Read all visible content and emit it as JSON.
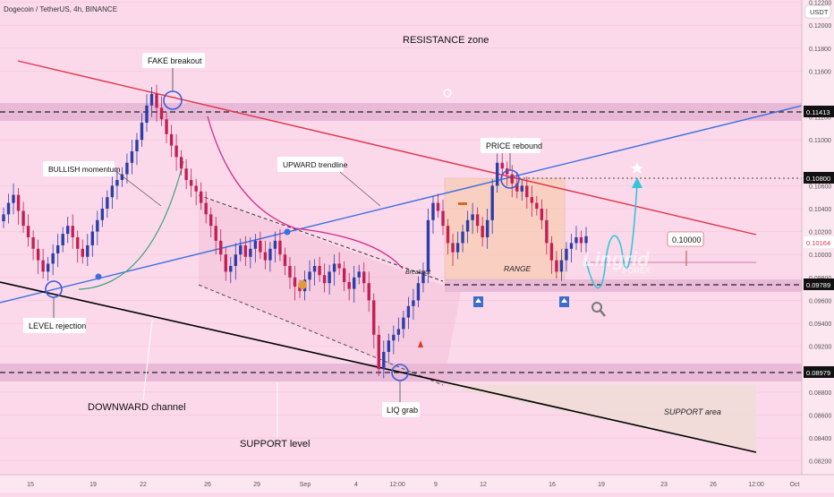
{
  "header": {
    "symbol": "Dogecoin / TetherUS, 4h, BINANCE"
  },
  "price_axis": {
    "currency": "USDT"
  },
  "time_axis": {
    "labels": [
      "15",
      "19",
      "22",
      "26",
      "29",
      "Sep",
      "4",
      "12:00",
      "9",
      "12",
      "16",
      "19",
      "23",
      "26",
      "12:00",
      "Oct"
    ]
  },
  "annotations": {
    "resistance_zone": "RESISTANCE zone",
    "fake_breakout": "FAKE breakout",
    "bullish_momentum": "BULLISH momentum",
    "upward_trendline": "UPWARD trendline",
    "price_rebound": "PRICE rebound",
    "breakout": "Breakout",
    "range": "RANGE",
    "level_rejection": "LEVEL rejection",
    "downward_channel": "DOWNWARD channel",
    "support_level": "SUPPORT level",
    "liq_grab": "LIQ grab",
    "support_area": "SUPPORT area",
    "target_price": "0.10000"
  },
  "watermark": {
    "brand": "Lingrid",
    "sub": "FOREX"
  },
  "colors": {
    "background": "#fbd9ea",
    "bull_candle": "#2c3ea8",
    "bear_candle": "#c21f54",
    "resistance_line": "#e0344a",
    "upward_trendline": "#3b6ee0",
    "channel_line": "#000000",
    "zone_fill": "#d9a0c8",
    "range_box": "#f8c9a8",
    "projection": "#36c6d8",
    "current_price_tag": "#e0344a"
  },
  "chart_data": {
    "type": "candlestick",
    "title": "Dogecoin / TetherUS, 4h, BINANCE",
    "ylabel": "USDT",
    "ylim": [
      0.0808,
      0.1222
    ],
    "y_ticks": [
      0.082,
      0.084,
      0.086,
      0.088,
      0.092,
      0.094,
      0.096,
      0.098,
      0.1,
      0.102,
      0.104,
      0.106,
      0.11,
      0.112,
      0.116,
      0.118,
      0.12,
      0.122
    ],
    "x_ticks": [
      "15",
      "19",
      "22",
      "26",
      "29",
      "Sep",
      "4",
      "12:00",
      "9",
      "12",
      "16",
      "19",
      "23",
      "26",
      "12:00",
      "Oct"
    ],
    "price_labels": {
      "resistance": "0.11413",
      "range_top": "0.10800",
      "current": "0.10164",
      "support_high": "0.09789",
      "support_low": "0.08979"
    },
    "key_levels": {
      "resistance": 0.11413,
      "range_top": 0.108,
      "current": 0.10164,
      "target": 0.1,
      "support_high": 0.09789,
      "support_low": 0.08979
    },
    "candles_close": [
      0.1035,
      0.1045,
      0.1052,
      0.1038,
      0.1025,
      0.1015,
      0.1005,
      0.0995,
      0.0985,
      0.0992,
      0.1001,
      0.1008,
      0.1018,
      0.1025,
      0.1015,
      0.1005,
      0.0998,
      0.1008,
      0.102,
      0.103,
      0.104,
      0.105,
      0.106,
      0.1065,
      0.107,
      0.108,
      0.109,
      0.11,
      0.1115,
      0.113,
      0.114,
      0.1128,
      0.1118,
      0.1105,
      0.1095,
      0.1085,
      0.1075,
      0.1065,
      0.106,
      0.1055,
      0.1045,
      0.1035,
      0.1025,
      0.1012,
      0.1,
      0.0985,
      0.099,
      0.1,
      0.1008,
      0.0998,
      0.1005,
      0.1012,
      0.1002,
      0.0995,
      0.1005,
      0.1012,
      0.1,
      0.099,
      0.098,
      0.0972,
      0.0968,
      0.0978,
      0.0985,
      0.099,
      0.0982,
      0.0975,
      0.0985,
      0.0992,
      0.0988,
      0.0976,
      0.097,
      0.098,
      0.0985,
      0.0975,
      0.096,
      0.093,
      0.09,
      0.0915,
      0.0925,
      0.093,
      0.0935,
      0.0945,
      0.0955,
      0.096,
      0.0975,
      0.0985,
      0.103,
      0.1045,
      0.1038,
      0.1025,
      0.101,
      0.1002,
      0.101,
      0.102,
      0.103,
      0.1035,
      0.1025,
      0.1015,
      0.103,
      0.106,
      0.108,
      0.1075,
      0.107,
      0.1062,
      0.1055,
      0.106,
      0.105,
      0.1045,
      0.104,
      0.103,
      0.101,
      0.0995,
      0.0985,
      0.0995,
      0.1005,
      0.101,
      0.1015,
      0.101,
      0.1016
    ],
    "projection_path": [
      0.101,
      0.0978,
      0.1012,
      0.104,
      0.1005,
      0.098,
      0.103,
      0.108
    ],
    "resistance_line": {
      "from": 0.1206,
      "to": 0.1027
    },
    "upward_trendline": {
      "from": 0.0975,
      "to": 0.1141
    },
    "channel_line": {
      "from": 0.0978,
      "to": 0.0818
    }
  }
}
